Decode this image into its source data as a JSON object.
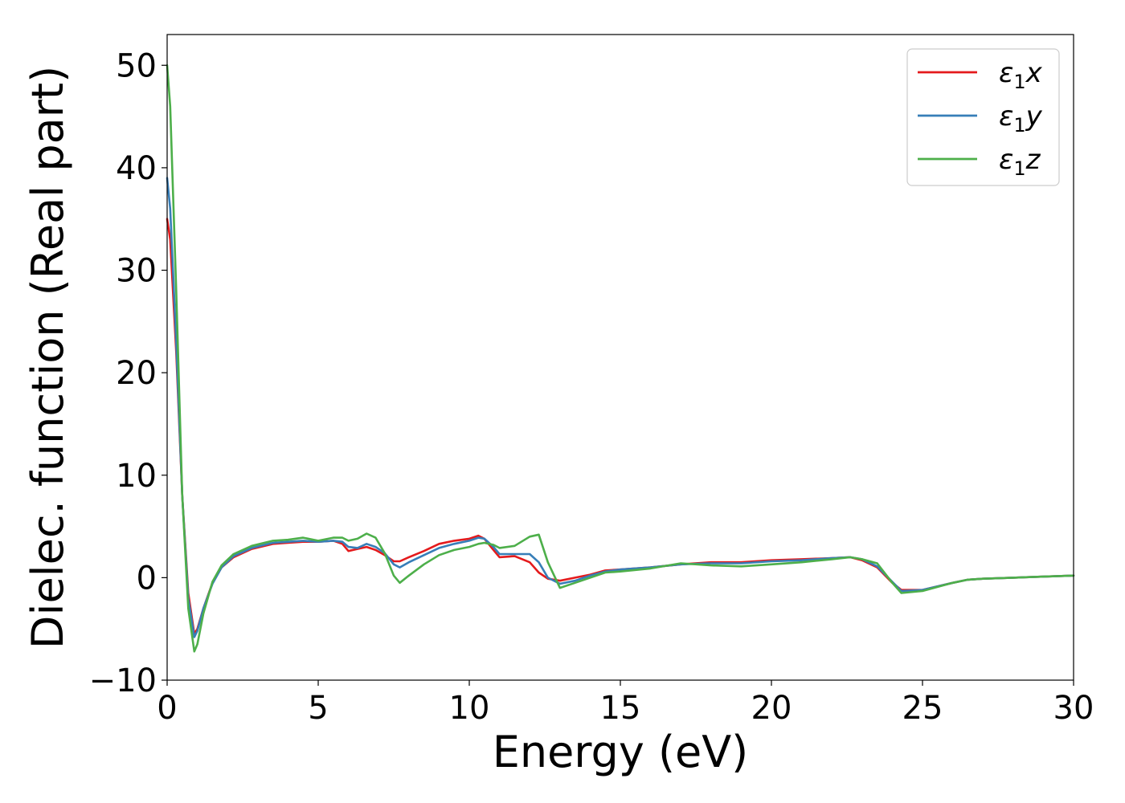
{
  "chart_data": {
    "type": "line",
    "xlabel": "Energy (eV)",
    "ylabel": "Dielec. function (Real part)",
    "xlim": [
      0,
      30
    ],
    "ylim": [
      -10,
      53
    ],
    "xticks": [
      0,
      5,
      10,
      15,
      20,
      25,
      30
    ],
    "xtick_labels": [
      "0",
      "5",
      "10",
      "15",
      "20",
      "25",
      "30"
    ],
    "yticks": [
      -10,
      0,
      10,
      20,
      30,
      40,
      50
    ],
    "ytick_labels": [
      "−10",
      "0",
      "10",
      "20",
      "30",
      "40",
      "50"
    ],
    "grid": false,
    "legend_position": "top-right",
    "series": [
      {
        "name": "ε₁x",
        "legend_main": "ε",
        "legend_sub": "1",
        "legend_tail": "x",
        "color": "#e41a1c",
        "x": [
          0,
          0.1,
          0.3,
          0.5,
          0.7,
          0.9,
          1.0,
          1.2,
          1.5,
          1.8,
          2.2,
          2.8,
          3.5,
          4.0,
          4.5,
          5.0,
          5.5,
          5.8,
          6.0,
          6.3,
          6.6,
          6.9,
          7.2,
          7.5,
          7.7,
          8.0,
          8.5,
          9.0,
          9.5,
          10.0,
          10.3,
          10.5,
          10.8,
          11.0,
          11.5,
          12.0,
          12.3,
          12.6,
          13.0,
          13.5,
          14.0,
          14.5,
          15.0,
          16.0,
          17.0,
          18.0,
          19.0,
          20.0,
          21.0,
          22.0,
          22.6,
          23.0,
          23.5,
          24.0,
          24.3,
          25.0,
          26.0,
          26.5,
          27.0,
          28.0,
          29.0,
          30.0
        ],
        "y": [
          35,
          33,
          22,
          8,
          -1.5,
          -5.5,
          -5.0,
          -3.0,
          -0.5,
          1.0,
          2.0,
          2.8,
          3.3,
          3.4,
          3.5,
          3.5,
          3.6,
          3.3,
          2.6,
          2.8,
          3.0,
          2.7,
          2.2,
          1.6,
          1.6,
          2.0,
          2.6,
          3.3,
          3.6,
          3.8,
          4.1,
          3.8,
          2.7,
          2.0,
          2.1,
          1.5,
          0.5,
          -0.1,
          -0.3,
          0.0,
          0.3,
          0.7,
          0.8,
          1.0,
          1.3,
          1.5,
          1.5,
          1.7,
          1.8,
          1.9,
          2.0,
          1.7,
          1.0,
          -0.5,
          -1.2,
          -1.2,
          -0.5,
          -0.2,
          -0.1,
          0.0,
          0.1,
          0.2
        ]
      },
      {
        "name": "ε₁y",
        "legend_main": "ε",
        "legend_sub": "1",
        "legend_tail": "y",
        "color": "#377eb8",
        "x": [
          0,
          0.1,
          0.3,
          0.5,
          0.7,
          0.9,
          1.0,
          1.2,
          1.5,
          1.8,
          2.2,
          2.8,
          3.5,
          4.0,
          4.5,
          5.0,
          5.5,
          5.8,
          6.0,
          6.3,
          6.6,
          6.9,
          7.2,
          7.5,
          7.7,
          8.0,
          8.5,
          9.0,
          9.5,
          10.0,
          10.3,
          10.5,
          10.8,
          11.0,
          11.5,
          12.0,
          12.3,
          12.6,
          13.0,
          13.5,
          14.0,
          14.5,
          15.0,
          16.0,
          17.0,
          18.0,
          19.0,
          20.0,
          21.0,
          22.0,
          22.6,
          23.0,
          23.5,
          24.0,
          24.3,
          25.0,
          26.0,
          26.5,
          27.0,
          28.0,
          29.0,
          30.0
        ],
        "y": [
          39,
          36,
          23,
          8,
          -2,
          -5.8,
          -5.2,
          -3.0,
          -0.6,
          1.0,
          2.1,
          2.9,
          3.4,
          3.5,
          3.6,
          3.5,
          3.6,
          3.5,
          3.0,
          2.9,
          3.3,
          3.0,
          2.4,
          1.3,
          1.0,
          1.5,
          2.2,
          2.9,
          3.3,
          3.6,
          3.9,
          3.8,
          3.0,
          2.3,
          2.3,
          2.3,
          1.5,
          0.0,
          -0.6,
          -0.3,
          0.2,
          0.6,
          0.8,
          1.0,
          1.3,
          1.4,
          1.4,
          1.6,
          1.7,
          1.9,
          2.0,
          1.8,
          1.1,
          -0.4,
          -1.3,
          -1.2,
          -0.5,
          -0.2,
          -0.1,
          0.0,
          0.1,
          0.2
        ]
      },
      {
        "name": "ε₁z",
        "legend_main": "ε",
        "legend_sub": "1",
        "legend_tail": "z",
        "color": "#4daf4a",
        "x": [
          0,
          0.1,
          0.3,
          0.5,
          0.7,
          0.9,
          1.0,
          1.2,
          1.5,
          1.8,
          2.2,
          2.8,
          3.5,
          4.0,
          4.5,
          5.0,
          5.5,
          5.8,
          6.0,
          6.3,
          6.6,
          6.9,
          7.2,
          7.5,
          7.7,
          8.0,
          8.5,
          9.0,
          9.5,
          10.0,
          10.3,
          10.5,
          10.8,
          11.0,
          11.5,
          12.0,
          12.3,
          12.6,
          13.0,
          13.5,
          14.0,
          14.5,
          15.0,
          16.0,
          17.0,
          18.0,
          19.0,
          20.0,
          21.0,
          22.0,
          22.6,
          23.0,
          23.5,
          24.0,
          24.3,
          25.0,
          26.0,
          26.5,
          27.0,
          28.0,
          29.0,
          30.0
        ],
        "y": [
          50,
          46,
          28,
          8,
          -3,
          -7.2,
          -6.5,
          -3.5,
          -0.4,
          1.2,
          2.3,
          3.1,
          3.6,
          3.7,
          3.9,
          3.6,
          3.9,
          3.9,
          3.6,
          3.8,
          4.3,
          3.9,
          2.4,
          0.2,
          -0.5,
          0.2,
          1.3,
          2.2,
          2.7,
          3.0,
          3.3,
          3.4,
          3.2,
          2.9,
          3.1,
          4.0,
          4.2,
          1.5,
          -1.0,
          -0.5,
          0.0,
          0.5,
          0.6,
          0.9,
          1.4,
          1.2,
          1.1,
          1.3,
          1.5,
          1.8,
          2.0,
          1.8,
          1.4,
          -0.5,
          -1.5,
          -1.3,
          -0.5,
          -0.2,
          -0.1,
          0.0,
          0.1,
          0.2
        ]
      }
    ]
  }
}
